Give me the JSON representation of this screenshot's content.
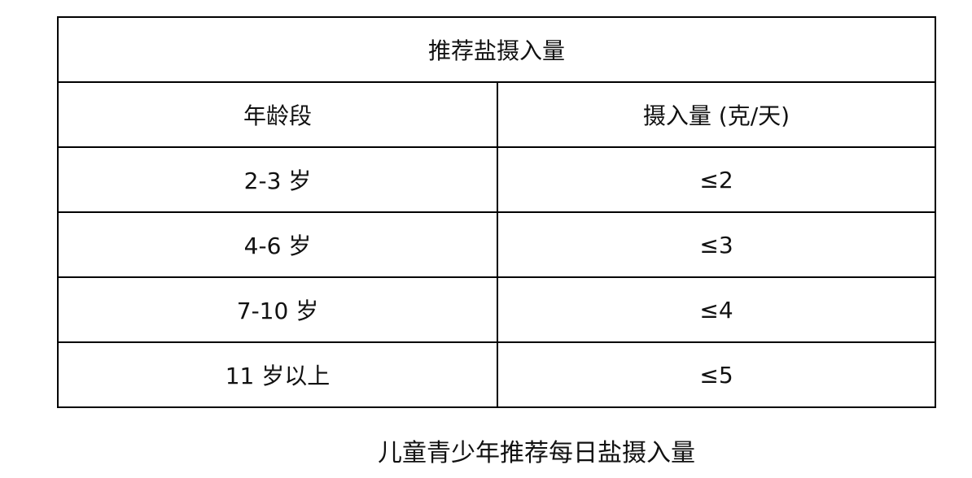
{
  "table": {
    "title": "推荐盐摄入量",
    "headers": [
      "年龄段",
      "摄入量 (克/天)"
    ],
    "rows": [
      [
        "2-3 岁",
        "≤2"
      ],
      [
        "4-6 岁",
        "≤3"
      ],
      [
        "7-10 岁",
        "≤4"
      ],
      [
        "11 岁以上",
        "≤5"
      ]
    ]
  },
  "caption": "儿童青少年推荐每日盐摄入量"
}
